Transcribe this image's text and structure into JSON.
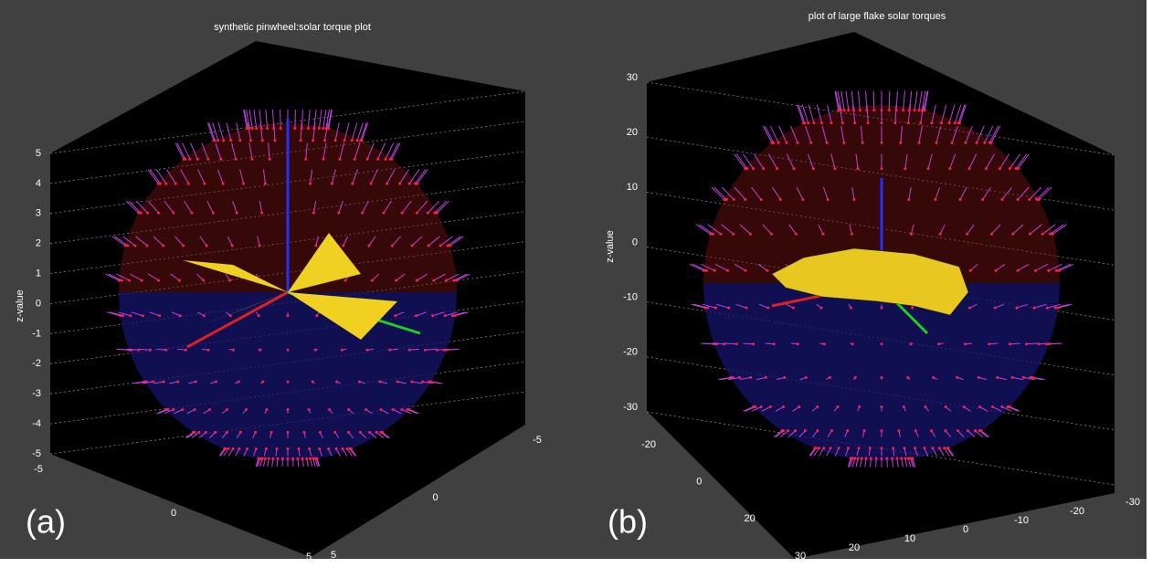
{
  "panels": [
    {
      "label": "(a)",
      "title": "synthetic pinwheel:solar torque plot",
      "z_label": "z-value",
      "z_ticks": [
        5,
        4,
        3,
        2,
        1,
        0,
        -1,
        -2,
        -3,
        -4,
        -5
      ],
      "x_ticks": [
        -5,
        0,
        5
      ],
      "y_ticks": [
        5,
        0,
        -5
      ]
    },
    {
      "label": "(b)",
      "title": "plot of large flake solar torques",
      "z_label": "z-value",
      "z_ticks": [
        30,
        20,
        10,
        0,
        -10,
        -20,
        -30
      ],
      "x_ticks": [
        -20,
        0,
        20,
        30
      ],
      "y_ticks": [
        20,
        10,
        0,
        -10,
        -20,
        -30
      ]
    }
  ]
}
